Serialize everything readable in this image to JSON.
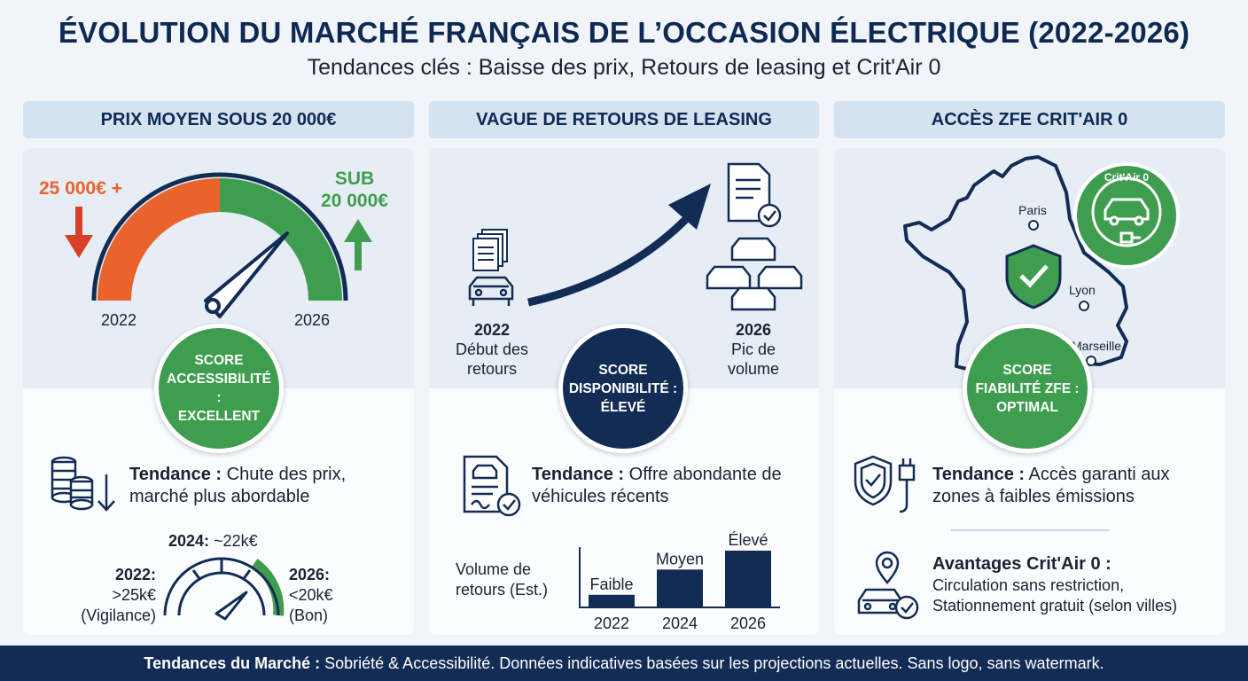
{
  "title": "ÉVOLUTION DU MARCHÉ FRANÇAIS DE L’OCCASION ÉLECTRIQUE (2022-2026)",
  "subtitle": "Tendances clés : Baisse des prix, Retours de leasing et Crit'Air 0",
  "colors": {
    "navy": "#132c55",
    "green": "#3f9d4f",
    "orange": "#e8642c",
    "header_bg": "#d5e2f2"
  },
  "panel1": {
    "header": "PRIX MOYEN SOUS 20 000€",
    "left_price": "25 000€ +",
    "right_price_line1": "SUB",
    "right_price_line2": "20 000€",
    "year_start": "2022",
    "year_end": "2026",
    "score": "SCORE\nACCESSIBILITÉ :\nEXCELLENT",
    "trend_bold": "Tendance :",
    "trend_text": " Chute des prix, marché plus abordable",
    "gauge_top_bold": "2024:",
    "gauge_top": " ~22k€",
    "gauge_left_bold": "2022:",
    "gauge_left_1": ">25k€",
    "gauge_left_2": "(Vigilance)",
    "gauge_right_bold": "2026:",
    "gauge_right_1": "<20k€",
    "gauge_right_2": "(Bon)",
    "icons": [
      "arrow-down-icon",
      "arrow-up-icon",
      "coin-stack-icon"
    ]
  },
  "panel2": {
    "header": "VAGUE DE RETOURS DE LEASING",
    "left_year": "2022",
    "left_l1": "Début des",
    "left_l2": "retours",
    "right_year": "2026",
    "right_l1": "Pic de",
    "right_l2": "volume",
    "score": "SCORE\nDISPONIBILITÉ :\nÉLEVÉ",
    "trend_bold": "Tendance :",
    "trend_text": " Offre abondante de véhicules récents",
    "chart_ylabel_1": "Volume de",
    "chart_ylabel_2": "retours (Est.)",
    "chart_data": {
      "type": "bar",
      "categories": [
        "2022",
        "2024",
        "2026"
      ],
      "values": [
        1,
        3,
        4.5
      ],
      "data_labels": [
        "Faible",
        "Moyen",
        "Élevé"
      ],
      "ylabel": "Volume de retours (Est.)"
    }
  },
  "panel3": {
    "header": "ACCÈS ZFE CRIT'AIR 0",
    "badge": "Crit'Air 0",
    "city_paris": "Paris",
    "city_lyon": "Lyon",
    "city_marseille": "Marseille",
    "score": "SCORE\nFIABILITÉ ZFE :\nOPTIMAL",
    "trend_bold": "Tendance :",
    "trend_text": " Accès garanti aux zones à faibles émissions",
    "adv_title": "Avantages Crit'Air 0 :",
    "adv_l1": "Circulation sans restriction,",
    "adv_l2": "Stationnement gratuit (selon villes)"
  },
  "footer_bold": "Tendances du Marché :",
  "footer_text": " Sobriété & Accessibilité. Données indicatives basées sur les projections actuelles. Sans logo, sans watermark."
}
